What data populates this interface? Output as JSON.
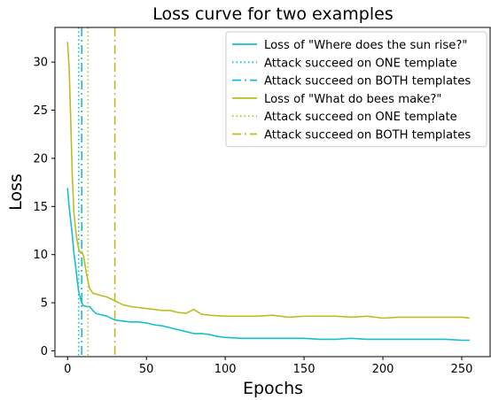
{
  "chart_data": {
    "type": "line",
    "title": "Loss curve for two examples",
    "xlabel": "Epochs",
    "ylabel": "Loss",
    "xlim": [
      -8,
      268
    ],
    "ylim": [
      -0.6,
      33.6
    ],
    "xticks": [
      0,
      50,
      100,
      150,
      200,
      250
    ],
    "yticks": [
      0,
      5,
      10,
      15,
      20,
      25,
      30
    ],
    "grid": false,
    "legend_position": "top-right",
    "series": [
      {
        "name": "Loss of \"Where does the sun rise?\"",
        "color": "#17becf",
        "style": "solid",
        "x": [
          0,
          1,
          2,
          3,
          4,
          5,
          6,
          7,
          8,
          9,
          10,
          12,
          14,
          16,
          18,
          20,
          25,
          30,
          35,
          40,
          45,
          50,
          55,
          60,
          65,
          70,
          75,
          80,
          85,
          90,
          95,
          100,
          110,
          120,
          130,
          140,
          150,
          160,
          170,
          180,
          190,
          200,
          210,
          220,
          230,
          240,
          250,
          255
        ],
        "y": [
          16.9,
          15.0,
          13.5,
          12.0,
          10.2,
          9.0,
          7.5,
          6.2,
          5.5,
          5.0,
          4.7,
          4.6,
          4.6,
          4.2,
          3.9,
          3.8,
          3.6,
          3.2,
          3.1,
          3.0,
          3.0,
          2.9,
          2.7,
          2.6,
          2.4,
          2.2,
          2.0,
          1.8,
          1.8,
          1.7,
          1.5,
          1.4,
          1.3,
          1.3,
          1.3,
          1.3,
          1.3,
          1.2,
          1.2,
          1.3,
          1.2,
          1.2,
          1.2,
          1.2,
          1.2,
          1.2,
          1.1,
          1.1
        ]
      },
      {
        "name": "Attack succeed on ONE template",
        "color": "#17becf",
        "style": "dotted",
        "vline_x": 7
      },
      {
        "name": "Attack succeed on BOTH templates",
        "color": "#17becf",
        "style": "dashdot",
        "vline_x": 9
      },
      {
        "name": "Loss of \"What do bees make?\"",
        "color": "#bcbd22",
        "style": "solid",
        "x": [
          0,
          1,
          2,
          3,
          4,
          5,
          6,
          7,
          8,
          9,
          10,
          12,
          14,
          16,
          18,
          20,
          25,
          30,
          35,
          40,
          45,
          50,
          55,
          60,
          65,
          70,
          75,
          80,
          85,
          90,
          100,
          110,
          120,
          130,
          140,
          150,
          160,
          170,
          180,
          190,
          200,
          210,
          220,
          230,
          240,
          250,
          255
        ],
        "y": [
          32.1,
          29.5,
          24.0,
          18.0,
          14.5,
          12.8,
          11.5,
          10.6,
          10.2,
          10.3,
          10.0,
          8.0,
          6.5,
          6.0,
          5.9,
          5.8,
          5.6,
          5.2,
          4.8,
          4.6,
          4.5,
          4.4,
          4.3,
          4.2,
          4.2,
          4.0,
          3.9,
          4.3,
          3.8,
          3.7,
          3.6,
          3.6,
          3.6,
          3.7,
          3.5,
          3.6,
          3.6,
          3.6,
          3.5,
          3.6,
          3.4,
          3.5,
          3.5,
          3.5,
          3.5,
          3.5,
          3.4
        ]
      },
      {
        "name": "Attack succeed on ONE template",
        "color": "#bcbd22",
        "style": "dotted",
        "vline_x": 13
      },
      {
        "name": "Attack succeed on BOTH templates",
        "color": "#bcbd22",
        "style": "dashdot",
        "vline_x": 30
      }
    ]
  }
}
